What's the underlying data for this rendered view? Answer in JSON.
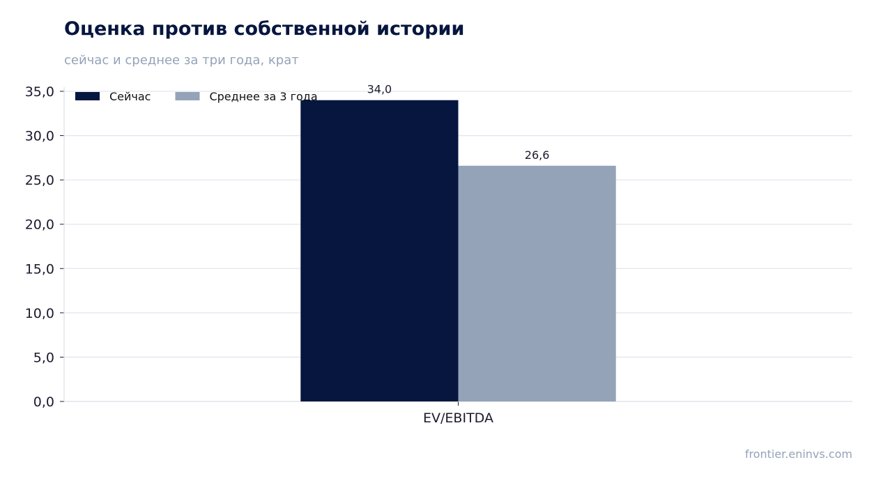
{
  "title": "Оценка против собственной истории",
  "subtitle": "сейчас и среднее за три года, крат",
  "source": "frontier.eninvs.com",
  "colors": {
    "series_now": "#06163f",
    "series_avg": "#94a3b8",
    "grid": "#e2e6ef",
    "axis": "#dde1ea"
  },
  "chart_data": {
    "type": "bar",
    "title": "Оценка против собственной истории",
    "subtitle": "сейчас и среднее за три года, крат",
    "categories": [
      "EV/EBITDA"
    ],
    "series": [
      {
        "name": "Сейчас",
        "values": [
          34.0
        ],
        "color": "#06163f"
      },
      {
        "name": "Среднее за 3 года",
        "values": [
          26.6
        ],
        "color": "#94a3b8"
      }
    ],
    "data_labels": [
      [
        "34,0"
      ],
      [
        "26,6"
      ]
    ],
    "ylim": [
      0,
      35
    ],
    "yticks": [
      0,
      5,
      10,
      15,
      20,
      25,
      30,
      35
    ],
    "ytick_labels": [
      "0,0",
      "5,0",
      "10,0",
      "15,0",
      "20,0",
      "25,0",
      "30,0",
      "35,0"
    ],
    "xlabel": "",
    "ylabel": "",
    "grid": true,
    "legend": {
      "placement": "top-left",
      "entries": [
        "Сейчас",
        "Среднее за 3 года"
      ]
    }
  }
}
